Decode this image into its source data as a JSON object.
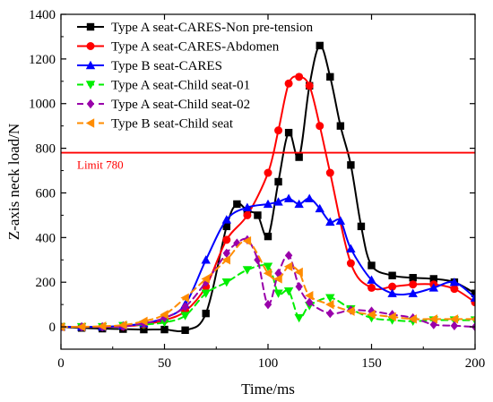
{
  "chart_data": {
    "type": "line",
    "title": "",
    "xlabel": "Time/ms",
    "ylabel": "Z-axis neck load/N",
    "xlim": [
      0,
      200
    ],
    "ylim": [
      -100,
      1400
    ],
    "xticks": [
      0,
      50,
      100,
      150,
      200
    ],
    "yticks": [
      0,
      200,
      400,
      600,
      800,
      1000,
      1200,
      1400
    ],
    "grid": false,
    "legend_position": "top-left",
    "annotations": [
      {
        "type": "hline",
        "y": 780,
        "label": "Limit 780",
        "color": "#ff0000"
      }
    ],
    "series": [
      {
        "name": "Type A seat-CARES-Non pre-tension",
        "color": "#000000",
        "line_style": "solid",
        "marker": "square",
        "x": [
          0,
          10,
          20,
          30,
          40,
          50,
          60,
          70,
          80,
          85,
          90,
          95,
          100,
          105,
          110,
          115,
          120,
          125,
          130,
          135,
          140,
          145,
          150,
          160,
          170,
          180,
          190,
          200
        ],
        "y": [
          0,
          -5,
          -8,
          -10,
          -12,
          -12,
          -15,
          60,
          450,
          550,
          520,
          500,
          405,
          650,
          870,
          760,
          1080,
          1260,
          1120,
          900,
          725,
          450,
          275,
          230,
          220,
          215,
          200,
          150
        ]
      },
      {
        "name": "Type A seat-CARES-Abdomen",
        "color": "#ff0000",
        "line_style": "solid",
        "marker": "circle",
        "x": [
          0,
          10,
          20,
          30,
          40,
          50,
          60,
          70,
          80,
          90,
          100,
          105,
          110,
          115,
          120,
          125,
          130,
          140,
          150,
          160,
          170,
          180,
          190,
          200
        ],
        "y": [
          0,
          0,
          0,
          2,
          10,
          30,
          70,
          180,
          390,
          500,
          690,
          880,
          1090,
          1120,
          1080,
          900,
          690,
          285,
          175,
          180,
          190,
          190,
          170,
          110
        ]
      },
      {
        "name": "Type B seat-CARES",
        "color": "#0000ff",
        "line_style": "solid",
        "marker": "triangle-up",
        "x": [
          0,
          10,
          20,
          30,
          40,
          50,
          60,
          70,
          80,
          90,
          100,
          105,
          110,
          115,
          120,
          125,
          130,
          135,
          140,
          150,
          160,
          170,
          180,
          190,
          200
        ],
        "y": [
          0,
          0,
          0,
          5,
          15,
          40,
          100,
          300,
          480,
          535,
          550,
          560,
          575,
          550,
          575,
          530,
          470,
          475,
          350,
          210,
          150,
          150,
          175,
          200,
          130
        ]
      },
      {
        "name": "Type A seat-Child seat-01",
        "color": "#00ee00",
        "line_style": "dash",
        "marker": "triangle-down",
        "x": [
          0,
          10,
          20,
          30,
          40,
          50,
          60,
          70,
          80,
          90,
          100,
          105,
          110,
          115,
          120,
          130,
          140,
          150,
          160,
          170,
          180,
          190,
          200
        ],
        "y": [
          0,
          0,
          0,
          5,
          10,
          20,
          50,
          150,
          200,
          255,
          270,
          150,
          160,
          40,
          95,
          130,
          80,
          40,
          30,
          25,
          30,
          30,
          30
        ]
      },
      {
        "name": "Type A seat-Child seat-02",
        "color": "#9900aa",
        "line_style": "dash",
        "marker": "diamond",
        "x": [
          0,
          10,
          20,
          30,
          40,
          50,
          60,
          70,
          80,
          85,
          90,
          95,
          100,
          105,
          110,
          115,
          120,
          130,
          140,
          150,
          160,
          170,
          180,
          190,
          200
        ],
        "y": [
          0,
          0,
          0,
          2,
          15,
          40,
          90,
          200,
          330,
          375,
          390,
          300,
          100,
          240,
          320,
          180,
          110,
          60,
          75,
          70,
          55,
          40,
          10,
          5,
          0
        ]
      },
      {
        "name": "Type B seat-Child seat",
        "color": "#ff8c00",
        "line_style": "dash",
        "marker": "triangle-left",
        "x": [
          0,
          10,
          20,
          30,
          40,
          50,
          60,
          70,
          80,
          90,
          100,
          105,
          110,
          115,
          120,
          130,
          140,
          150,
          160,
          170,
          180,
          190,
          200
        ],
        "y": [
          0,
          0,
          3,
          8,
          25,
          55,
          130,
          215,
          300,
          385,
          240,
          215,
          270,
          245,
          140,
          100,
          70,
          55,
          45,
          35,
          35,
          35,
          35
        ]
      }
    ]
  }
}
